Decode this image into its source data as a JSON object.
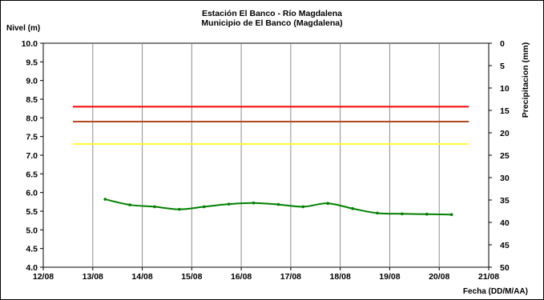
{
  "chart_data": {
    "type": "line",
    "title": "Estación El Banco - Río Magdalena",
    "subtitle": "Municipio de El Banco (Magdalena)",
    "ylabel": "Nivel (m)",
    "y2label": "Precipitacion (mm)",
    "xlabel": "Fecha (DD/M/AA)",
    "ylim": [
      4.0,
      10.0
    ],
    "y2lim": [
      0,
      50
    ],
    "y2_reversed": true,
    "x_range": [
      "12/08",
      "21/08"
    ],
    "x_ticks": [
      "12/08",
      "13/08",
      "14/08",
      "15/08",
      "16/08",
      "17/08",
      "18/08",
      "19/08",
      "20/08",
      "21/08"
    ],
    "y_ticks": [
      "4.0",
      "4.5",
      "5.0",
      "5.5",
      "6.0",
      "6.5",
      "7.0",
      "7.5",
      "8.0",
      "8.5",
      "9.0",
      "9.5",
      "10.0"
    ],
    "y2_ticks": [
      "0",
      "5",
      "10",
      "15",
      "20",
      "25",
      "30",
      "35",
      "40",
      "45",
      "50"
    ],
    "grid": "vertical",
    "thresholds": [
      {
        "value": 8.3,
        "color": "#ff0000",
        "x_start": 12.6,
        "x_end": 20.6
      },
      {
        "value": 7.9,
        "color": "#b04a1e",
        "x_start": 12.6,
        "x_end": 20.6
      },
      {
        "value": 7.3,
        "color": "#ffff33",
        "x_start": 12.6,
        "x_end": 20.6
      }
    ],
    "series": [
      {
        "color": "#008000",
        "x": [
          13.25,
          13.75,
          14.25,
          14.75,
          15.25,
          15.75,
          16.25,
          16.75,
          17.25,
          17.75,
          18.25,
          18.75,
          19.25,
          19.75,
          20.25
        ],
        "values": [
          5.82,
          5.67,
          5.62,
          5.55,
          5.62,
          5.69,
          5.72,
          5.68,
          5.62,
          5.71,
          5.57,
          5.45,
          5.43,
          5.42,
          5.41
        ]
      }
    ]
  }
}
